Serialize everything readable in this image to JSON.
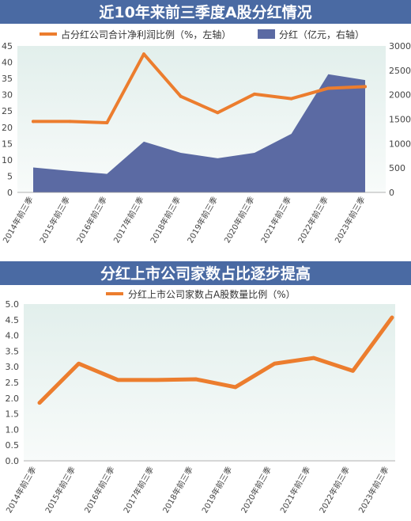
{
  "colors": {
    "header_bg": "#4a6aa3",
    "header_text": "#ffffff",
    "plot_bg": "#e6f1ee",
    "area_fill": "#5b6aa3",
    "line": "#ec7d2e",
    "axis_text": "#444444"
  },
  "chart_data": [
    {
      "type": "line+area",
      "title": "近10年来前三季度A股分红情况",
      "categories": [
        "2014年前三季",
        "2015年前三季",
        "2016年前三季",
        "2017年前三季",
        "2018年前三季",
        "2019年前三季",
        "2020年前三季",
        "2021年前三季",
        "2022年前三季",
        "2023年前三季"
      ],
      "series": [
        {
          "name": "占分红公司合计净利润比例（%，左轴）",
          "type": "line",
          "axis": "left",
          "values": [
            21.8,
            21.8,
            21.4,
            42.5,
            29.5,
            24.5,
            30.2,
            28.8,
            32.0,
            32.5
          ]
        },
        {
          "name": "分红（亿元，右轴）",
          "type": "area",
          "axis": "right",
          "values": [
            510,
            440,
            380,
            1040,
            810,
            700,
            810,
            1200,
            2420,
            2300
          ]
        }
      ],
      "y_left": {
        "min": 0,
        "max": 45,
        "ticks": [
          "0",
          "5",
          "10",
          "15",
          "20",
          "25",
          "30",
          "35",
          "40",
          "45"
        ]
      },
      "y_right": {
        "min": 0,
        "max": 3000,
        "ticks": [
          "0",
          "500",
          "1000",
          "1500",
          "2000",
          "2500",
          "3000"
        ]
      },
      "grid": false,
      "legend_placement": "top"
    },
    {
      "type": "line",
      "title": "分红上市公司家数占比逐步提高",
      "categories": [
        "2014年前三季",
        "2015年前三季",
        "2016年前三季",
        "2017年前三季",
        "2018年前三季",
        "2019年前三季",
        "2020年前三季",
        "2021年前三季",
        "2022年前三季",
        "2023年前三季"
      ],
      "series": [
        {
          "name": "分红上市公司家数占A股数量比例（%）",
          "values": [
            1.85,
            3.1,
            2.58,
            2.58,
            2.6,
            2.35,
            3.1,
            3.28,
            2.87,
            4.57
          ]
        }
      ],
      "y": {
        "min": 0,
        "max": 5.0,
        "ticks": [
          "0.0",
          "0.5",
          "1.0",
          "1.5",
          "2.0",
          "2.5",
          "3.0",
          "3.5",
          "4.0",
          "4.5",
          "5.0"
        ]
      },
      "grid": false,
      "legend_placement": "top"
    }
  ]
}
